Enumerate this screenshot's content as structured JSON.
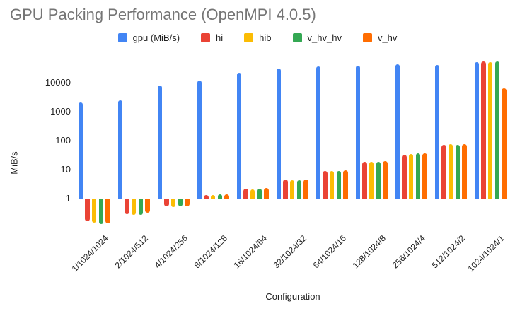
{
  "title": "GPU Packing Performance (OpenMPI 4.0.5)",
  "chart_data": {
    "type": "bar",
    "title": "GPU Packing Performance (OpenMPI 4.0.5)",
    "xlabel": "Configuration",
    "ylabel": "MiB/s",
    "y_scale": "log",
    "y_ticks": [
      1,
      10,
      100,
      1000,
      10000
    ],
    "ylim": [
      0.1,
      100000
    ],
    "grid": true,
    "legend_position": "top",
    "categories": [
      "1/1024/1024",
      "2/1024/512",
      "4/1024/256",
      "8/1024/128",
      "16/1024/64",
      "32/1024/32",
      "64/1024/16",
      "128/1024/8",
      "256/1024/4",
      "512/1024/2",
      "1024/1024/1"
    ],
    "series": [
      {
        "name": "gpu (MiB/s)",
        "color": "#4285F4",
        "values": [
          2100,
          2500,
          7800,
          12000,
          22000,
          31000,
          36000,
          39000,
          43000,
          41000,
          51000
        ]
      },
      {
        "name": "hi",
        "color": "#EA4335",
        "values": [
          0.17,
          0.29,
          0.55,
          1.35,
          2.2,
          4.6,
          9.0,
          19,
          33,
          70,
          54000
        ]
      },
      {
        "name": "hib",
        "color": "#FBBC04",
        "values": [
          0.15,
          0.27,
          0.52,
          1.3,
          2.1,
          4.2,
          8.9,
          19,
          35,
          76,
          51000
        ]
      },
      {
        "name": "v_hv_hv",
        "color": "#34A853",
        "values": [
          0.13,
          0.27,
          0.55,
          1.4,
          2.2,
          4.4,
          9.0,
          19,
          36,
          70,
          54000
        ]
      },
      {
        "name": "v_hv",
        "color": "#FF6D01",
        "values": [
          0.14,
          0.32,
          0.55,
          1.4,
          2.3,
          4.6,
          9.5,
          20,
          36,
          76,
          6500
        ]
      }
    ]
  }
}
